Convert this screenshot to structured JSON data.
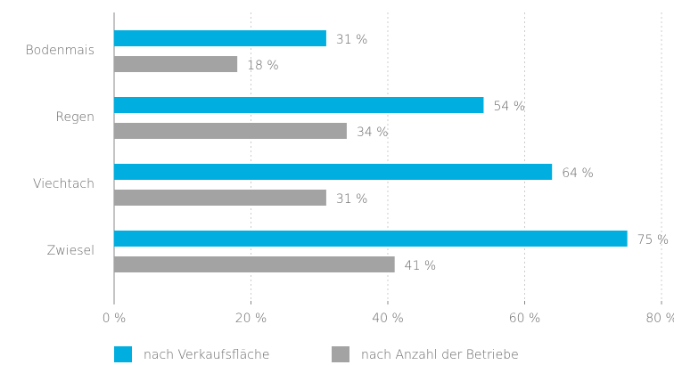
{
  "chart_data": {
    "type": "bar",
    "orientation": "horizontal",
    "categories": [
      "Bodenmais",
      "Regen",
      "Viechtach",
      "Zwiesel"
    ],
    "series": [
      {
        "name": "nach Verkaufsfläche",
        "color": "#00aedf",
        "values": [
          31,
          54,
          64,
          75
        ],
        "value_labels": [
          "31 %",
          "54 %",
          "64 %",
          "75 %"
        ]
      },
      {
        "name": "nach Anzahl der Betriebe",
        "color": "#a3a3a3",
        "values": [
          18,
          34,
          31,
          41
        ],
        "value_labels": [
          "18 %",
          "34 %",
          "31 %",
          "41 %"
        ]
      }
    ],
    "xlim": [
      0,
      80
    ],
    "xticks": [
      {
        "value": 0,
        "label": "0 %"
      },
      {
        "value": 20,
        "label": "20 %"
      },
      {
        "value": 40,
        "label": "40 %"
      },
      {
        "value": 60,
        "label": "60 %"
      },
      {
        "value": 80,
        "label": "80 %"
      }
    ],
    "grid": true
  }
}
